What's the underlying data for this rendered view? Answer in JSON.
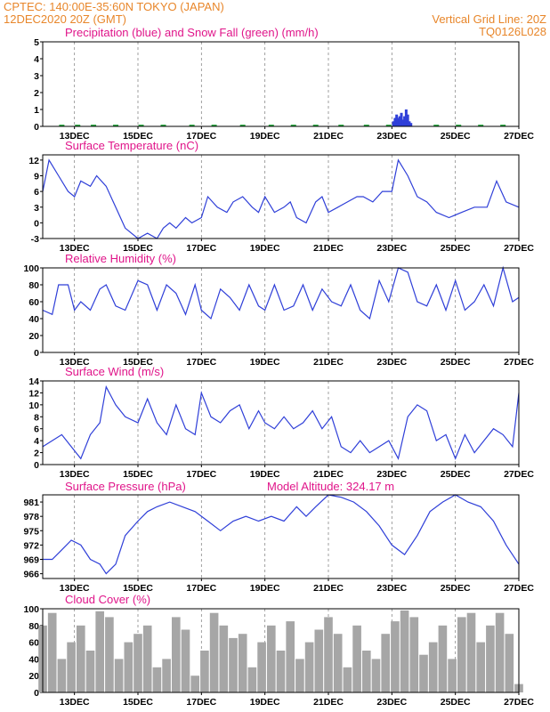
{
  "header": {
    "line1_left": "CPTEC:   140:00E-35:60N   TOKYO (JAPAN)",
    "line2_left": "12DEC2020 20Z (GMT)",
    "line2_right": "Vertical Grid Line: 20Z",
    "line3_right": "TQ0126L028"
  },
  "colors": {
    "header": "#e8862a",
    "title": "#e0158a",
    "line": "#2f3fd8",
    "snow": "#22a63a",
    "cloud": "#a6a6a6"
  },
  "chart_data": [
    {
      "type": "bar",
      "title": "Precipitation (blue) and Snow Fall (green) (mm/h)",
      "x_ticks": [
        "13DEC",
        "15DEC",
        "17DEC",
        "19DEC",
        "21DEC",
        "23DEC",
        "25DEC",
        "27DEC"
      ],
      "ylim": [
        0,
        5
      ],
      "y_ticks": [
        0,
        1,
        2,
        3,
        4,
        5
      ],
      "series": [
        {
          "name": "Precipitation",
          "x_days": [
            23.05,
            23.1,
            23.15,
            23.2,
            23.25,
            23.3,
            23.35,
            23.4,
            23.45,
            23.5,
            23.55,
            23.6
          ],
          "values": [
            0.3,
            0.5,
            0.7,
            0.5,
            0.6,
            0.8,
            0.4,
            0.6,
            1.0,
            0.7,
            0.3,
            0.2
          ]
        },
        {
          "name": "Snow Fall",
          "x_days": [
            12.6,
            13.1,
            13.6,
            14.3,
            15.1,
            15.8,
            16.7,
            17.4,
            18.3,
            19.2,
            19.9,
            20.6,
            21.4,
            22.2,
            22.9,
            24.4,
            25.1,
            25.8,
            26.5
          ],
          "values": [
            0.1,
            0.1,
            0.1,
            0.1,
            0.1,
            0.1,
            0.1,
            0.1,
            0.1,
            0.1,
            0.1,
            0.1,
            0.1,
            0.1,
            0.1,
            0.1,
            0.1,
            0.1,
            0.1
          ]
        }
      ]
    },
    {
      "type": "line",
      "title": "Surface Temperature (nC)",
      "x_ticks": [
        "13DEC",
        "15DEC",
        "17DEC",
        "19DEC",
        "21DEC",
        "23DEC",
        "25DEC",
        "27DEC"
      ],
      "ylim": [
        -3,
        13
      ],
      "y_ticks": [
        -3,
        0,
        3,
        6,
        9,
        12
      ],
      "x_days": [
        12.0,
        12.2,
        12.5,
        12.8,
        13.0,
        13.2,
        13.5,
        13.7,
        14.0,
        14.3,
        14.6,
        15.0,
        15.3,
        15.6,
        15.8,
        16.0,
        16.2,
        16.5,
        16.7,
        17.0,
        17.2,
        17.5,
        17.8,
        18.0,
        18.3,
        18.6,
        18.8,
        19.0,
        19.3,
        19.6,
        19.8,
        20.0,
        20.3,
        20.6,
        20.8,
        21.0,
        21.3,
        21.6,
        21.9,
        22.1,
        22.4,
        22.7,
        23.0,
        23.2,
        23.5,
        23.8,
        24.1,
        24.4,
        24.8,
        25.2,
        25.6,
        26.0,
        26.3,
        26.6,
        27.0
      ],
      "values": [
        6,
        12,
        9,
        6,
        5,
        8,
        7,
        9,
        7,
        3,
        -1,
        -3,
        -2,
        -3,
        -1,
        0,
        -1,
        1,
        0,
        1,
        5,
        3,
        2,
        4,
        5,
        3,
        2,
        5,
        2,
        3,
        4,
        1,
        0,
        4,
        5,
        2,
        3,
        4,
        5,
        5,
        4,
        6,
        6,
        12,
        9,
        5,
        4,
        2,
        1,
        2,
        3,
        3,
        8,
        4,
        3
      ]
    },
    {
      "type": "line",
      "title": "Relative Humidity (%)",
      "x_ticks": [
        "13DEC",
        "15DEC",
        "17DEC",
        "19DEC",
        "21DEC",
        "23DEC",
        "25DEC",
        "27DEC"
      ],
      "ylim": [
        0,
        100
      ],
      "y_ticks": [
        0,
        20,
        40,
        60,
        80,
        100
      ],
      "x_days": [
        12.0,
        12.3,
        12.5,
        12.8,
        13.0,
        13.2,
        13.5,
        13.8,
        14.0,
        14.3,
        14.6,
        15.0,
        15.3,
        15.6,
        15.9,
        16.2,
        16.5,
        16.8,
        17.0,
        17.3,
        17.6,
        17.9,
        18.2,
        18.5,
        18.8,
        19.0,
        19.3,
        19.6,
        19.9,
        20.2,
        20.5,
        20.8,
        21.1,
        21.4,
        21.7,
        22.0,
        22.3,
        22.6,
        22.9,
        23.2,
        23.5,
        23.8,
        24.1,
        24.4,
        24.7,
        25.0,
        25.3,
        25.6,
        25.9,
        26.2,
        26.5,
        26.8,
        27.0
      ],
      "values": [
        50,
        45,
        80,
        80,
        50,
        60,
        50,
        75,
        80,
        55,
        50,
        85,
        80,
        50,
        80,
        70,
        45,
        80,
        50,
        40,
        75,
        65,
        50,
        80,
        55,
        50,
        80,
        50,
        55,
        80,
        50,
        75,
        60,
        55,
        80,
        50,
        40,
        85,
        60,
        100,
        95,
        60,
        55,
        80,
        50,
        85,
        50,
        60,
        80,
        55,
        100,
        60,
        65
      ]
    },
    {
      "type": "line",
      "title": "Surface Wind (m/s)",
      "x_ticks": [
        "13DEC",
        "15DEC",
        "17DEC",
        "19DEC",
        "21DEC",
        "23DEC",
        "25DEC",
        "27DEC"
      ],
      "ylim": [
        0,
        14
      ],
      "y_ticks": [
        0,
        2,
        4,
        6,
        8,
        10,
        12,
        14
      ],
      "x_days": [
        12.0,
        12.3,
        12.6,
        12.9,
        13.2,
        13.5,
        13.8,
        14.0,
        14.3,
        14.6,
        15.0,
        15.3,
        15.6,
        15.9,
        16.2,
        16.5,
        16.8,
        17.0,
        17.3,
        17.6,
        17.9,
        18.2,
        18.5,
        18.8,
        19.0,
        19.3,
        19.6,
        19.9,
        20.2,
        20.5,
        20.8,
        21.1,
        21.4,
        21.7,
        22.0,
        22.3,
        22.6,
        22.9,
        23.2,
        23.5,
        23.8,
        24.1,
        24.4,
        24.7,
        25.0,
        25.3,
        25.6,
        25.9,
        26.2,
        26.5,
        26.8,
        27.0
      ],
      "values": [
        3,
        4,
        5,
        3,
        1,
        5,
        7,
        13,
        10,
        8,
        7,
        11,
        7,
        5,
        10,
        6,
        5,
        12,
        8,
        7,
        9,
        10,
        6,
        9,
        7,
        6,
        8,
        6,
        7,
        9,
        6,
        8,
        3,
        2,
        4,
        2,
        3,
        4,
        1,
        8,
        10,
        9,
        4,
        5,
        1,
        5,
        2,
        4,
        6,
        5,
        3,
        12
      ]
    },
    {
      "type": "line",
      "title": "Surface Pressure (hPa)",
      "annotation": "Model Altitude: 324.17 m",
      "x_ticks": [
        "13DEC",
        "15DEC",
        "17DEC",
        "19DEC",
        "21DEC",
        "23DEC",
        "25DEC",
        "27DEC"
      ],
      "ylim": [
        965,
        982.5
      ],
      "y_ticks": [
        966,
        969,
        972,
        975,
        978,
        981
      ],
      "x_days": [
        12.0,
        12.3,
        12.6,
        12.9,
        13.2,
        13.5,
        13.8,
        14.0,
        14.3,
        14.6,
        15.0,
        15.3,
        15.6,
        16.0,
        16.4,
        16.8,
        17.2,
        17.6,
        18.0,
        18.4,
        18.8,
        19.2,
        19.6,
        20.0,
        20.3,
        20.6,
        21.0,
        21.4,
        21.8,
        22.2,
        22.6,
        23.0,
        23.4,
        23.8,
        24.2,
        24.6,
        25.0,
        25.4,
        25.8,
        26.2,
        26.6,
        27.0
      ],
      "values": [
        969,
        969,
        971,
        973,
        972,
        969,
        968,
        966,
        968,
        974,
        977,
        979,
        980,
        981,
        980,
        979,
        977,
        975,
        977,
        978,
        977,
        978,
        977,
        980,
        978,
        980,
        983,
        982,
        981,
        979,
        976,
        972,
        970,
        974,
        979,
        981,
        983,
        981,
        980,
        977,
        972,
        968
      ]
    },
    {
      "type": "bar",
      "title": "Cloud Cover (%)",
      "x_ticks": [
        "13DEC",
        "15DEC",
        "17DEC",
        "19DEC",
        "21DEC",
        "23DEC",
        "25DEC",
        "27DEC"
      ],
      "ylim": [
        0,
        100
      ],
      "y_ticks": [
        0,
        20,
        40,
        60,
        80,
        100
      ],
      "x_days": [
        12.0,
        12.3,
        12.6,
        12.9,
        13.2,
        13.5,
        13.8,
        14.1,
        14.4,
        14.7,
        15.0,
        15.3,
        15.6,
        15.9,
        16.2,
        16.5,
        16.8,
        17.1,
        17.4,
        17.7,
        18.0,
        18.3,
        18.6,
        18.9,
        19.2,
        19.5,
        19.8,
        20.1,
        20.4,
        20.7,
        21.0,
        21.3,
        21.6,
        21.9,
        22.2,
        22.5,
        22.8,
        23.1,
        23.4,
        23.7,
        24.0,
        24.3,
        24.6,
        24.9,
        25.2,
        25.5,
        25.8,
        26.1,
        26.4,
        26.7,
        27.0
      ],
      "values": [
        80,
        95,
        40,
        60,
        80,
        50,
        97,
        90,
        40,
        60,
        70,
        80,
        30,
        40,
        90,
        75,
        20,
        50,
        95,
        80,
        65,
        70,
        30,
        60,
        80,
        50,
        85,
        40,
        60,
        75,
        90,
        70,
        30,
        80,
        50,
        40,
        70,
        85,
        98,
        90,
        45,
        60,
        80,
        40,
        90,
        95,
        60,
        80,
        95,
        70,
        10
      ]
    }
  ]
}
